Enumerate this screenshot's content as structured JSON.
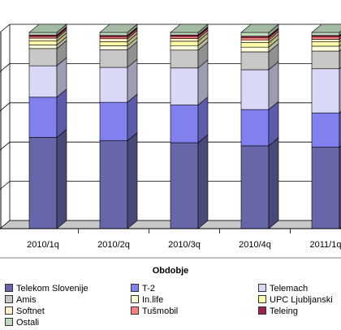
{
  "chart_data": {
    "type": "bar",
    "stacked": true,
    "percent_stacked": true,
    "style": "3d-column",
    "grid": "horizontal",
    "legend_position": "bottom",
    "title": "",
    "xlabel": "Obdobje",
    "ylabel": "",
    "ylim": [
      0,
      100
    ],
    "categories": [
      "2010/1q",
      "2010/2q",
      "2010/3q",
      "2010/4q",
      "2011/1q"
    ],
    "series": [
      {
        "name": "Telekom Slovenije",
        "color": "#6666a8",
        "values": [
          46.5,
          44.8,
          43.8,
          42.2,
          41.5
        ]
      },
      {
        "name": "T-2",
        "color": "#8080ee",
        "values": [
          20.5,
          19.6,
          19.2,
          18.5,
          17.5
        ]
      },
      {
        "name": "Telemach",
        "color": "#d9d9f7",
        "values": [
          16.0,
          17.8,
          18.9,
          20.3,
          22.5
        ]
      },
      {
        "name": "Amis",
        "color": "#c8c8c8",
        "values": [
          8.8,
          9.0,
          9.1,
          9.1,
          9.0
        ]
      },
      {
        "name": "In.life",
        "color": "#ffffdd",
        "values": [
          1.8,
          2.0,
          2.3,
          2.4,
          2.5
        ]
      },
      {
        "name": "UPC Ljubljanski",
        "color": "#ffffaa",
        "values": [
          2.0,
          2.1,
          2.2,
          2.3,
          2.2
        ]
      },
      {
        "name": "Softnet",
        "color": "#fff0cc",
        "values": [
          1.5,
          1.5,
          1.4,
          1.4,
          1.3
        ]
      },
      {
        "name": "Tušmobil",
        "color": "#ff8080",
        "values": [
          0.9,
          1.0,
          1.1,
          1.2,
          1.3
        ]
      },
      {
        "name": "Teleing",
        "color": "#a0204a",
        "values": [
          0.7,
          0.7,
          0.7,
          0.7,
          0.7
        ]
      },
      {
        "name": "Ostali",
        "color": "#c0dcc0",
        "values": [
          1.3,
          1.5,
          1.3,
          1.9,
          1.5
        ]
      }
    ]
  }
}
